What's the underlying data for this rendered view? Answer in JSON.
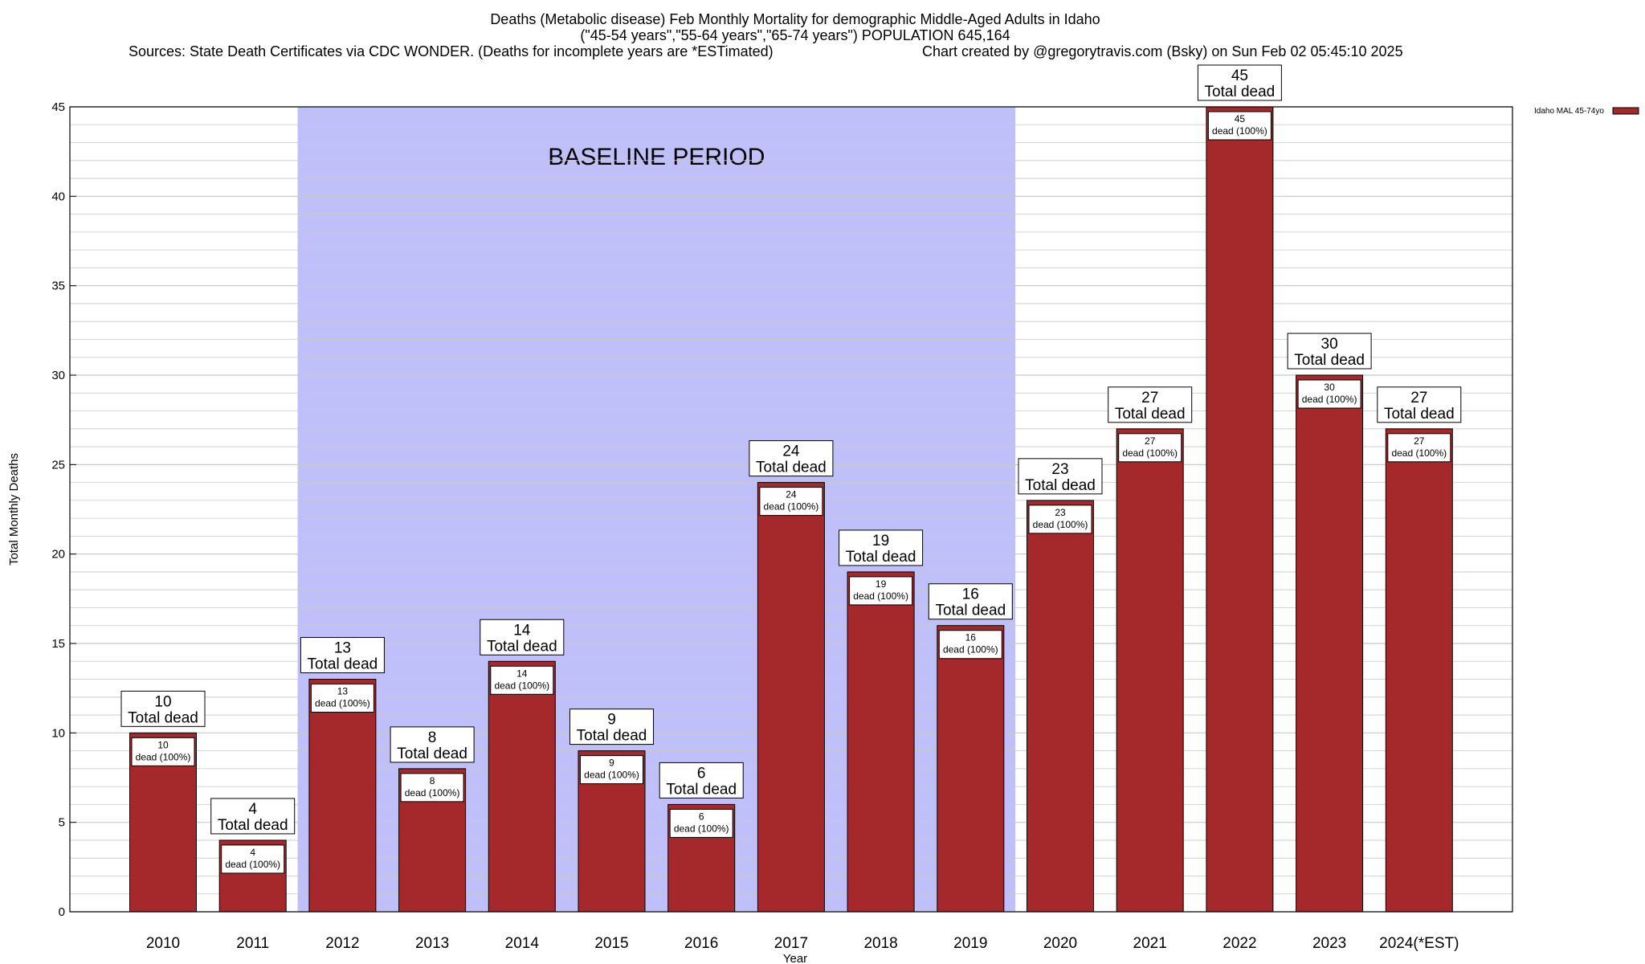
{
  "title": {
    "line1": "Deaths (Metabolic disease) Feb Monthly Mortality for demographic Middle-Aged Adults in Idaho",
    "line2": "(\"45-54 years\",\"55-64 years\",\"65-74 years\") POPULATION 645,164",
    "sources": "Sources: State Death Certificates via CDC WONDER. (Deaths for incomplete years are *ESTimated)",
    "credit": "Chart created by @gregorytravis.com (Bsky) on Sun Feb 02 05:45:10 2025"
  },
  "chart_data": {
    "type": "bar",
    "xlabel": "Year",
    "ylabel": "Total Monthly Deaths",
    "ylim": [
      0,
      45
    ],
    "yticks": [
      0,
      5,
      10,
      15,
      20,
      25,
      30,
      35,
      40,
      45
    ],
    "grid": true,
    "legend": {
      "placement": "top-right",
      "label": "Idaho MAL 45-74yo"
    },
    "baseline_annotation": {
      "text": "BASELINE PERIOD",
      "from": "2012",
      "to": "2019"
    },
    "categories": [
      "2010",
      "2011",
      "2012",
      "2013",
      "2014",
      "2015",
      "2016",
      "2017",
      "2018",
      "2019",
      "2020",
      "2021",
      "2022",
      "2023",
      "2024(*EST)"
    ],
    "series": [
      {
        "name": "Idaho MAL 45-74yo",
        "values": [
          10,
          4,
          13,
          8,
          14,
          9,
          6,
          24,
          19,
          16,
          23,
          27,
          45,
          30,
          27
        ]
      }
    ],
    "top_label_suffix": "Total dead",
    "inner_label_suffix": "dead (100%)"
  },
  "colors": {
    "bar": "#a5282a",
    "baseline_band": "#bfbffa",
    "grid": "#c8c8c8",
    "axis": "#000000"
  }
}
